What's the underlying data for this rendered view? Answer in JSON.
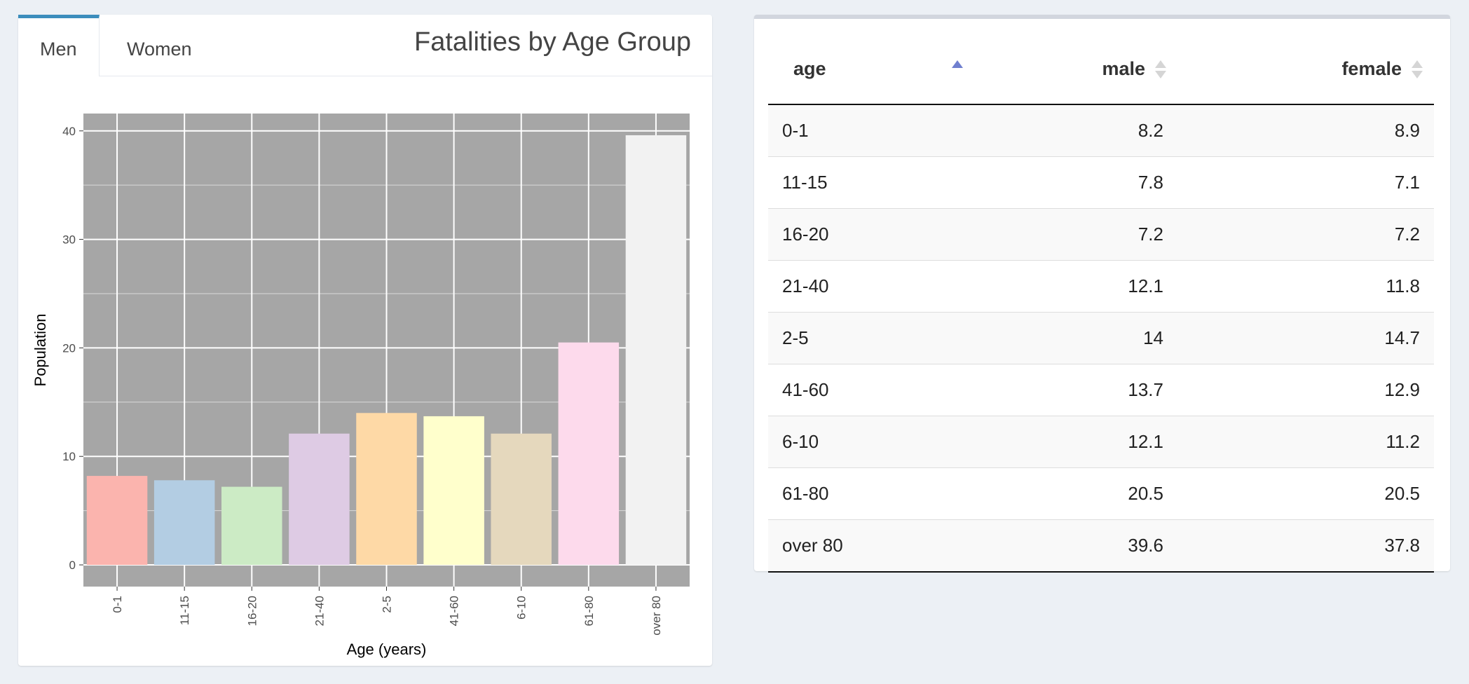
{
  "tabs": [
    {
      "label": "Men"
    },
    {
      "label": "Women"
    }
  ],
  "box_title": "Fatalities by Age Group",
  "colors": {
    "panel_bg": "#a6a6a6",
    "tab_accent": "#3c8dbc",
    "sort_active": "#6f7fcf"
  },
  "chart_data": {
    "type": "bar",
    "categories": [
      "0-1",
      "11-15",
      "16-20",
      "21-40",
      "2-5",
      "41-60",
      "6-10",
      "61-80",
      "over 80"
    ],
    "values": [
      8.2,
      7.8,
      7.2,
      12.1,
      14,
      13.7,
      12.1,
      20.5,
      39.6
    ],
    "bar_colors": [
      "#fbb4ae",
      "#b3cde3",
      "#ccebc5",
      "#decbe4",
      "#fed9a6",
      "#ffffcc",
      "#e5d8bd",
      "#fddaec",
      "#f2f2f2"
    ],
    "title": "",
    "xlabel": "Age (years)",
    "ylabel": "Population",
    "ylim": [
      -2,
      41.6
    ],
    "yticks": [
      0,
      10,
      20,
      30,
      40
    ],
    "grid": true
  },
  "table": {
    "columns": [
      {
        "label": "age",
        "sort": "asc"
      },
      {
        "label": "male",
        "sort": "none"
      },
      {
        "label": "female",
        "sort": "none"
      }
    ],
    "rows": [
      {
        "age": "0-1",
        "male": "8.2",
        "female": "8.9"
      },
      {
        "age": "11-15",
        "male": "7.8",
        "female": "7.1"
      },
      {
        "age": "16-20",
        "male": "7.2",
        "female": "7.2"
      },
      {
        "age": "21-40",
        "male": "12.1",
        "female": "11.8"
      },
      {
        "age": "2-5",
        "male": "14",
        "female": "14.7"
      },
      {
        "age": "41-60",
        "male": "13.7",
        "female": "12.9"
      },
      {
        "age": "6-10",
        "male": "12.1",
        "female": "11.2"
      },
      {
        "age": "61-80",
        "male": "20.5",
        "female": "20.5"
      },
      {
        "age": "over 80",
        "male": "39.6",
        "female": "37.8"
      }
    ]
  }
}
